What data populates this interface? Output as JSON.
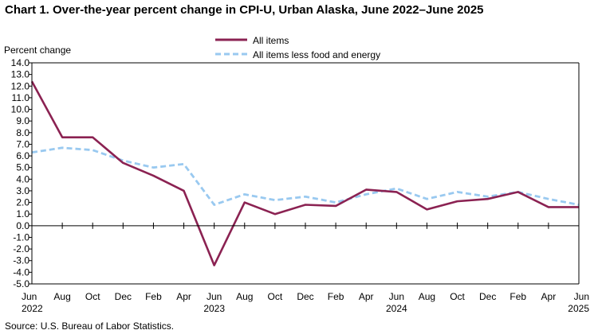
{
  "chart_data": {
    "type": "line",
    "title": "Chart 1. Over-the-year percent change in CPI-U, Urban Alaska,  June 2022–June 2025",
    "ylabel": "Percent change",
    "xlabel": "",
    "ylim": [
      -5.0,
      14.0
    ],
    "ytick_step": 1.0,
    "yticks": [
      "14.0",
      "13.0",
      "12.0",
      "11.0",
      "10.0",
      "9.0",
      "8.0",
      "7.0",
      "6.0",
      "5.0",
      "4.0",
      "3.0",
      "2.0",
      "1.0",
      "0.0",
      "-1.0",
      "-2.0",
      "-3.0",
      "-4.0",
      "-5.0"
    ],
    "grid": false,
    "legend_position": "top-center",
    "categories": [
      "Jun",
      "Aug",
      "Oct",
      "Dec",
      "Feb",
      "Apr",
      "Jun",
      "Aug",
      "Oct",
      "Dec",
      "Feb",
      "Apr",
      "Jun",
      "Aug",
      "Oct",
      "Dec",
      "Feb",
      "Apr",
      "Jun"
    ],
    "years": [
      {
        "label": "2022",
        "index": 0
      },
      {
        "label": "2023",
        "index": 6
      },
      {
        "label": "2024",
        "index": 12
      },
      {
        "label": "2025",
        "index": 18
      }
    ],
    "series": [
      {
        "name": "All items",
        "color": "#8b2252",
        "style": "solid",
        "values": [
          12.4,
          7.6,
          7.6,
          5.4,
          4.3,
          3.0,
          -3.4,
          2.0,
          1.0,
          1.8,
          1.7,
          3.1,
          2.9,
          1.4,
          2.1,
          2.3,
          2.9,
          1.6,
          1.6
        ]
      },
      {
        "name": "All items less food and energy",
        "color": "#99c9f0",
        "style": "dashed",
        "values": [
          6.3,
          6.7,
          6.5,
          5.6,
          5.0,
          5.3,
          1.8,
          2.7,
          2.2,
          2.5,
          2.0,
          2.7,
          3.2,
          2.3,
          2.9,
          2.5,
          2.9,
          2.3,
          1.8
        ]
      }
    ]
  },
  "source": "Source:  U.S. Bureau  of Labor Statistics."
}
